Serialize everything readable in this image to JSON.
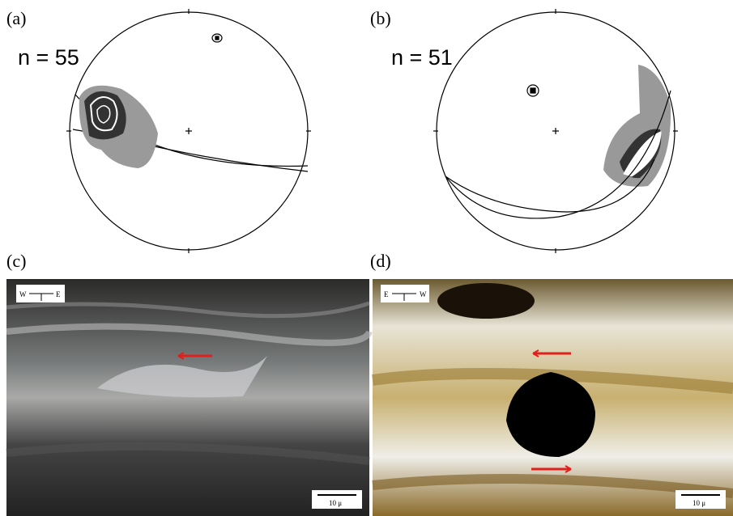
{
  "panels": [
    {
      "label": "(a)",
      "count": "n = 55"
    },
    {
      "label": "(b)",
      "count": "n = 51"
    },
    {
      "label": "(c)",
      "orientation": {
        "left": "W",
        "right": "E"
      },
      "scale": "10 μ"
    },
    {
      "label": "(d)",
      "orientation": {
        "left": "E",
        "right": "W"
      },
      "scale": "10 μ"
    }
  ]
}
